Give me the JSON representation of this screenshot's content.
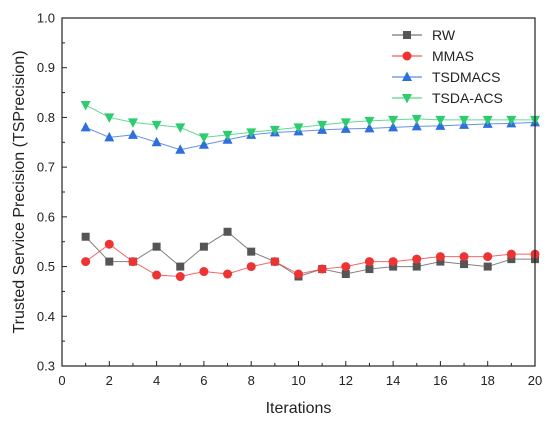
{
  "chart_data": {
    "type": "line",
    "xlabel": "Iterations",
    "ylabel": "Trusted Service Precision (TSPrecision)",
    "xlim": [
      0,
      20
    ],
    "ylim": [
      0.3,
      1.0
    ],
    "xticks": [
      "0",
      "2",
      "4",
      "6",
      "8",
      "10",
      "12",
      "14",
      "16",
      "18",
      "20"
    ],
    "yticks": [
      "0.3",
      "0.4",
      "0.5",
      "0.6",
      "0.7",
      "0.8",
      "0.9",
      "1.0"
    ],
    "x": [
      1,
      2,
      3,
      4,
      5,
      6,
      7,
      8,
      9,
      10,
      11,
      12,
      13,
      14,
      15,
      16,
      17,
      18,
      19,
      20
    ],
    "grid": false,
    "legend_position": "top-right",
    "series": [
      {
        "name": "RW",
        "marker": "square",
        "color": "#555555",
        "values": [
          0.56,
          0.51,
          0.51,
          0.54,
          0.5,
          0.54,
          0.57,
          0.53,
          0.51,
          0.48,
          0.495,
          0.485,
          0.495,
          0.5,
          0.5,
          0.51,
          0.505,
          0.5,
          0.515,
          0.515
        ]
      },
      {
        "name": "MMAS",
        "marker": "circle",
        "color": "#ee3333",
        "values": [
          0.51,
          0.545,
          0.51,
          0.483,
          0.48,
          0.49,
          0.485,
          0.5,
          0.51,
          0.485,
          0.495,
          0.5,
          0.51,
          0.51,
          0.515,
          0.52,
          0.52,
          0.52,
          0.525,
          0.525
        ]
      },
      {
        "name": "TSDMACS",
        "marker": "triangle-up",
        "color": "#2f6fdc",
        "values": [
          0.78,
          0.76,
          0.765,
          0.75,
          0.735,
          0.745,
          0.755,
          0.765,
          0.77,
          0.772,
          0.775,
          0.777,
          0.778,
          0.78,
          0.782,
          0.783,
          0.785,
          0.787,
          0.788,
          0.79
        ]
      },
      {
        "name": "TSDA-ACS",
        "marker": "triangle-down",
        "color": "#2ecc71",
        "values": [
          0.825,
          0.8,
          0.79,
          0.785,
          0.78,
          0.76,
          0.765,
          0.77,
          0.775,
          0.78,
          0.785,
          0.79,
          0.793,
          0.795,
          0.797,
          0.795,
          0.795,
          0.795,
          0.795,
          0.795
        ]
      }
    ]
  }
}
